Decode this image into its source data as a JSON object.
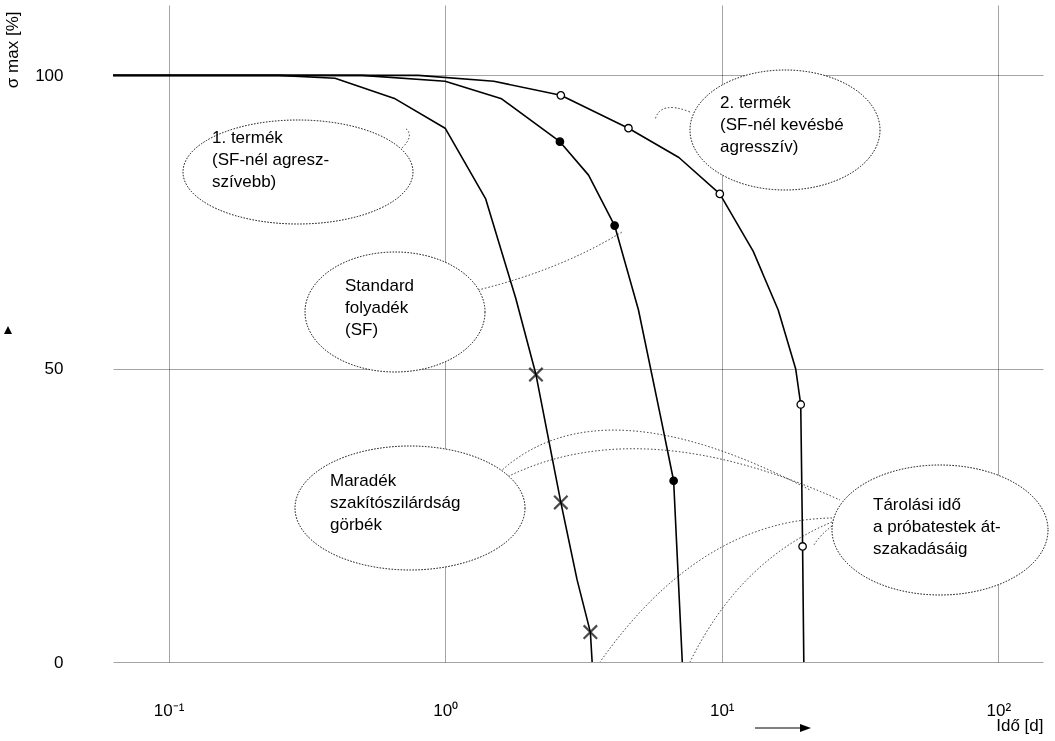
{
  "chart_data": {
    "type": "line",
    "xlabel": "Idő [d]",
    "ylabel": "σ max [%]",
    "log": "x",
    "grid": true,
    "xlim": [
      0.063,
      145
    ],
    "ylim": [
      0,
      112
    ],
    "xticks": [
      {
        "value": 0.1,
        "label": "10⁻¹"
      },
      {
        "value": 1,
        "label": "10⁰"
      },
      {
        "value": 10,
        "label": "10¹"
      },
      {
        "value": 100,
        "label": "10²"
      }
    ],
    "yticks": [
      0,
      50,
      100
    ],
    "annotations": [
      "1. termék\n(SF-nél agresz-\nszívebb)",
      "2. termék\n(SF-nél kevésbé\nagresszív)",
      "Standard\nfolyadék\n(SF)",
      "Maradék\nszakítószilárdság\ngörbék",
      "Tárolási idő\na próbatestek át-\nszakadásáig"
    ],
    "series": [
      {
        "type": "line",
        "color": "#000000",
        "x": [
          0.063,
          0.25,
          0.4,
          0.66,
          1.0,
          1.4,
          1.8,
          2.13,
          2.62,
          3.0,
          3.35,
          3.4
        ],
        "values": [
          100,
          100,
          99.5,
          96,
          91,
          79,
          62,
          49,
          27.2,
          14,
          5.1,
          0
        ]
      },
      {
        "type": "line",
        "color": "#000000",
        "x": [
          0.063,
          0.5,
          1.0,
          1.6,
          2.6,
          3.3,
          4.1,
          5.0,
          6.0,
          6.7,
          7.2
        ],
        "values": [
          100,
          100,
          99,
          96,
          88.7,
          83,
          74.4,
          60,
          42,
          30.9,
          0
        ]
      },
      {
        "type": "line",
        "color": "#000000",
        "x": [
          0.063,
          0.8,
          1.5,
          2.62,
          4.6,
          7,
          9.84,
          13,
          16,
          18.5,
          19.3,
          19.6,
          19.8
        ],
        "values": [
          100,
          100,
          99,
          96.6,
          91,
          86,
          79.8,
          70,
          60,
          50,
          43.9,
          19.7,
          0
        ]
      },
      {
        "type": "scatter",
        "marker": "cross",
        "color": "#000000",
        "x": [
          2.13,
          2.62,
          3.35
        ],
        "values": [
          49,
          27.2,
          5.1
        ]
      },
      {
        "type": "scatter",
        "marker": "circle",
        "color": "#000000",
        "x": [
          2.6,
          4.1,
          6.7
        ],
        "values": [
          88.7,
          74.4,
          30.9
        ]
      },
      {
        "type": "scatter",
        "marker": "circle",
        "color": "#ffffff",
        "x": [
          2.62,
          4.6,
          9.84,
          19.3,
          19.6
        ],
        "values": [
          96.6,
          91,
          79.8,
          43.9,
          19.7
        ]
      }
    ]
  }
}
